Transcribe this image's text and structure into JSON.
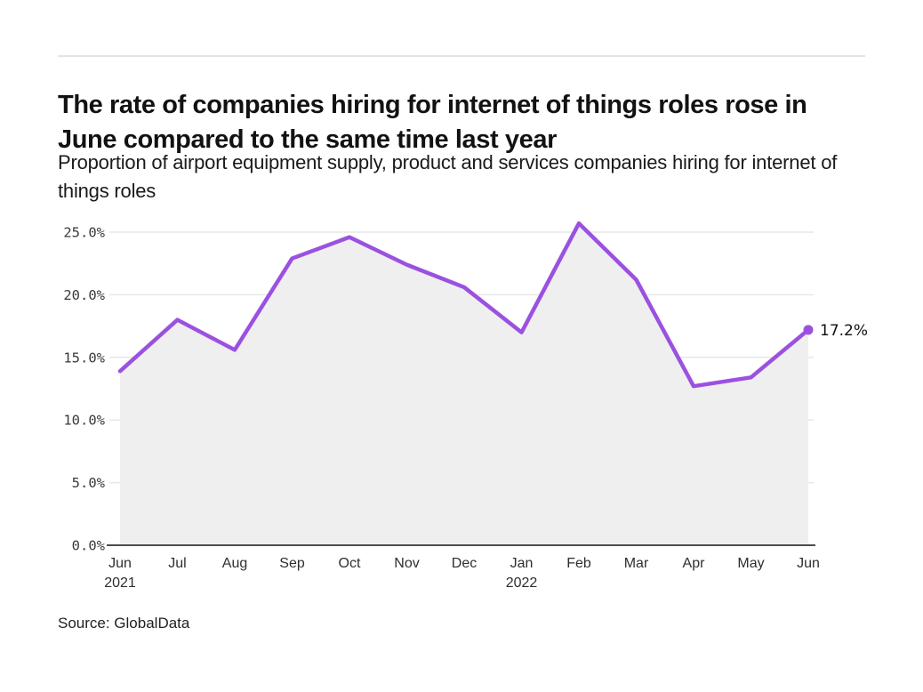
{
  "header": {
    "title": "The rate of companies hiring for internet of things roles rose in June compared to the same time last year",
    "subtitle": "Proportion of airport equipment supply, product and services companies hiring for internet of things roles"
  },
  "chart_data": {
    "type": "line",
    "title": "Proportion of airport equipment supply, product and services companies hiring for internet of things roles",
    "categories": [
      "Jun",
      "Jul",
      "Aug",
      "Sep",
      "Oct",
      "Nov",
      "Dec",
      "Jan",
      "Feb",
      "Mar",
      "Apr",
      "May",
      "Jun"
    ],
    "category_sublabels": [
      "2021",
      "",
      "",
      "",
      "",
      "",
      "",
      "2022",
      "",
      "",
      "",
      "",
      ""
    ],
    "series": [
      {
        "name": "Proportion of companies hiring for internet of things roles",
        "values": [
          13.9,
          18.0,
          15.6,
          22.9,
          24.6,
          22.4,
          20.6,
          17.0,
          25.7,
          21.2,
          12.7,
          13.4,
          17.2
        ]
      }
    ],
    "end_point_label": "17.2%",
    "yticks": [
      "0.0%",
      "5.0%",
      "10.0%",
      "15.0%",
      "20.0%",
      "25.0%"
    ],
    "ylim": [
      0,
      25
    ],
    "xlabel": "",
    "ylabel": "",
    "grid": "horizontal",
    "legend_position": "none",
    "line_color": "#9b51e0",
    "area_color": "#efefef",
    "axis_color": "#4d4d4d",
    "grid_color": "#e7e7e7"
  },
  "footer": {
    "source": "Source: GlobalData"
  }
}
